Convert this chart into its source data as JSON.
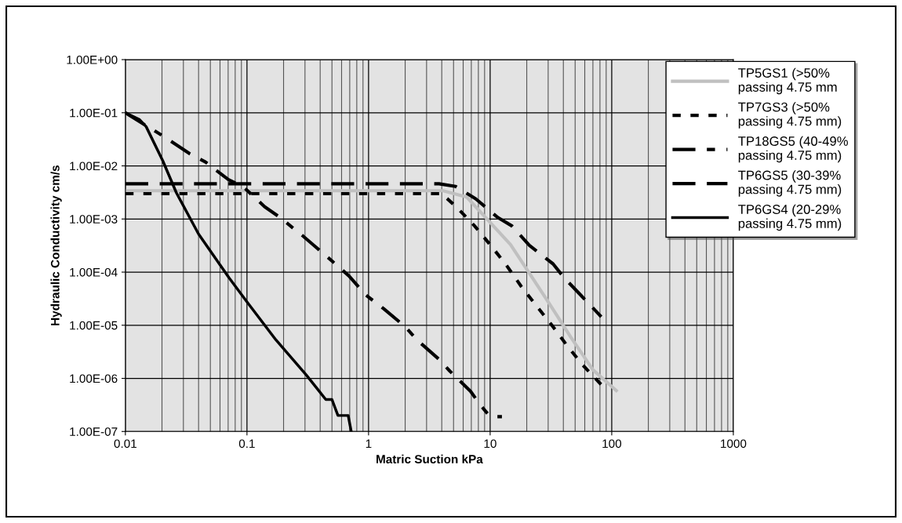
{
  "chart_data": {
    "type": "line",
    "xlabel": "Matric Suction kPa",
    "ylabel": "Hydraulic Conductivity cm/s",
    "log": "xy",
    "grid": true,
    "legend": "top right",
    "marker": "none",
    "xlim": [
      0.01,
      1000
    ],
    "xticks": [
      0.01,
      0.1,
      1,
      10,
      100,
      1000
    ],
    "ylim": [
      1e-07,
      1
    ],
    "yticks": [
      {
        "value": 1,
        "label": "1.00E+00"
      },
      {
        "value": 0.1,
        "label": "1.00E-01"
      },
      {
        "value": 0.01,
        "label": "1.00E-02"
      },
      {
        "value": 0.001,
        "label": "1.00E-03"
      },
      {
        "value": 0.0001,
        "label": "1.00E-04"
      },
      {
        "value": 1e-05,
        "label": "1.00E-05"
      },
      {
        "value": 1e-06,
        "label": "1.00E-06"
      },
      {
        "value": 1e-07,
        "label": "1.00E-07"
      }
    ],
    "series": [
      {
        "name": "TP5GS1 (>50%\npassing 4.75 mm",
        "color": "#c0c0c0",
        "line_style": "solid",
        "x": [
          0.01,
          4.1,
          6.4,
          9.2,
          14.7,
          20,
          30.5,
          46,
          70,
          109
        ],
        "values": [
          0.0034,
          0.0034,
          0.0026,
          0.00106,
          0.00033,
          0.000113,
          2.6e-05,
          6e-06,
          1.45e-06,
          5.9e-07
        ]
      },
      {
        "name": "TP7GS3 (>50%\npassing 4.75 mm)",
        "color": "#000000",
        "line_style": "dotted",
        "x": [
          0.01,
          4,
          5.4,
          7.45,
          10.2,
          13.6,
          18.1,
          24.1,
          32,
          42.7,
          57,
          82
        ],
        "values": [
          0.003,
          0.003,
          0.0016,
          0.00074,
          0.00031,
          0.000135,
          5.3e-05,
          2.3e-05,
          1.02e-05,
          4.2e-06,
          1.84e-06,
          7.6e-07
        ]
      },
      {
        "name": "TP18GS5 (40-49%\npassing 4.75 mm)",
        "color": "#000000",
        "line_style": "dashdot",
        "x": [
          0.01,
          0.0214,
          0.034,
          0.0456,
          0.0705,
          0.0925,
          0.14,
          0.182,
          0.285,
          0.36,
          0.548,
          0.69,
          0.95,
          1.33,
          2.02,
          2.5,
          3.78,
          4.66,
          6.9,
          8.27,
          10,
          12.5
        ],
        "values": [
          0.1,
          0.034,
          0.0168,
          0.0118,
          0.0055,
          0.0041,
          0.0017,
          0.00112,
          0.00049,
          0.00031,
          0.000135,
          8.5e-05,
          3.7e-05,
          2.05e-05,
          9.2e-06,
          5.3e-06,
          2.3e-06,
          1.37e-06,
          5.7e-07,
          3.2e-07,
          1.9e-07,
          1.9e-07
        ]
      },
      {
        "name": "TP6GS5 (30-39%\npassing 4.75 mm)",
        "color": "#000000",
        "line_style": "dashed",
        "x": [
          0.01,
          3.8,
          5.2,
          7.6,
          11.6,
          15.1,
          21,
          32.9,
          40.5,
          55.5,
          82
        ],
        "values": [
          0.0046,
          0.0046,
          0.0041,
          0.0024,
          0.00106,
          0.00074,
          0.00032,
          0.000143,
          7.9e-05,
          3.7e-05,
          1.44e-05
        ]
      },
      {
        "name": "TP6GS4 (20-29%\npassing 4.75 mm)",
        "color": "#000000",
        "line_style": "solid",
        "x": [
          0.01,
          0.013,
          0.0148,
          0.0203,
          0.0263,
          0.04,
          0.071,
          0.1,
          0.173,
          0.308,
          0.38,
          0.445,
          0.5,
          0.56,
          0.68,
          0.72
        ],
        "values": [
          0.1,
          0.075,
          0.055,
          0.0125,
          0.0031,
          0.00052,
          7.9e-05,
          2.75e-05,
          5.3e-06,
          1.15e-06,
          6.3e-07,
          4e-07,
          4e-07,
          2e-07,
          2e-07,
          1e-07
        ]
      }
    ]
  }
}
